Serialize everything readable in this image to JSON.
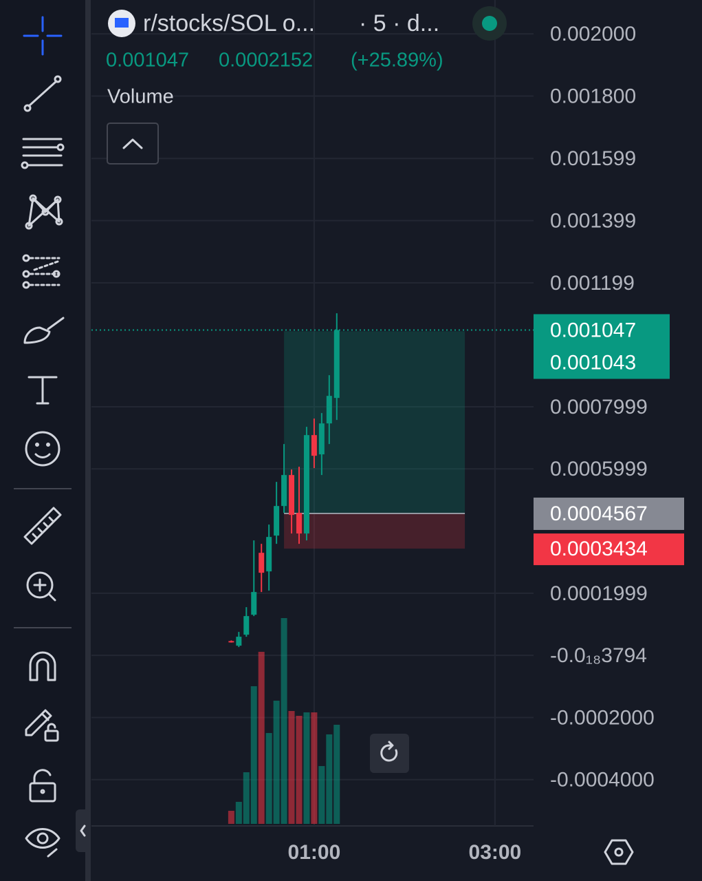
{
  "header": {
    "symbol": "r/stocks/SOL o...",
    "interval": "· 5 · d...",
    "change_pct": "(+25.89%)",
    "change": 0.0002152,
    "study": "Volume"
  },
  "chart_data": {
    "type": "candlestick",
    "x": [
      5,
      10,
      15,
      20,
      25,
      30,
      35,
      40,
      45,
      50,
      55,
      60,
      65,
      70,
      75
    ],
    "open": [
      4.6e-05,
      3.11e-05,
      6.65e-05,
      0.0001307,
      0.00033,
      0.0002702,
      0.0003854,
      0.0004806,
      0.0005803,
      0.0004585,
      0.0003921,
      0.0007088,
      0.0006468,
      0.0007464,
      0.0008284
    ],
    "high": [
      4.8e-05,
      7.54e-05,
      0.0001551,
      0.0003699,
      0.0003588,
      0.0004208,
      0.0005582,
      0.00068,
      0.000598,
      0.0006069,
      0.0007353,
      0.0007619,
      0.0007796,
      0.0009015,
      0.0011008
    ],
    "low": [
      4.1e-05,
      2.66e-05,
      5.99e-05,
      0.0001263,
      0.0002038,
      0.0002082,
      0.0003588,
      0.0004585,
      0.0003921,
      0.0003588,
      0.0003699,
      0.0006025,
      0.0005803,
      0.00068,
      0.0007575
    ],
    "close": [
      4.4e-05,
      5.99e-05,
      0.0001263,
      0.0002038,
      0.0002658,
      0.000381,
      0.0004806,
      0.0005803,
      0.0004519,
      0.0003921,
      0.0007088,
      0.0006423,
      0.0007464,
      0.000835,
      0.001047
    ],
    "volume": {
      "name": "Volume",
      "values": [
        19,
        32,
        75,
        200,
        250,
        132,
        179,
        299,
        164,
        157,
        162,
        162,
        84,
        130,
        144
      ]
    },
    "up_color": "#089981",
    "down_color": "#f23645",
    "last_price": 0.001047,
    "position": {
      "start": 40,
      "end": 160,
      "target": 0.001043,
      "entry": 0.0004567,
      "stop": 0.0003434
    },
    "ylim": [
      -0.000549,
      0.002109
    ],
    "yticks": [
      {
        "value": 0.002,
        "label": "0.002000"
      },
      {
        "value": 0.0018,
        "label": "0.001800"
      },
      0.001599,
      0.001399,
      0.001199,
      0.0007999,
      0.0005999,
      0.0001999,
      {
        "value": -3.794e-20,
        "label": "-0.0₁₈3794"
      },
      {
        "value": -0.0002,
        "label": "-0.0002000"
      },
      {
        "value": -0.0004,
        "label": "-0.0004000"
      }
    ],
    "xlim": [
      -87.8,
      205.6
    ],
    "xticks": [
      {
        "value": 60,
        "label": "01:00"
      },
      {
        "value": 180,
        "label": "03:00"
      }
    ],
    "grid": true
  }
}
